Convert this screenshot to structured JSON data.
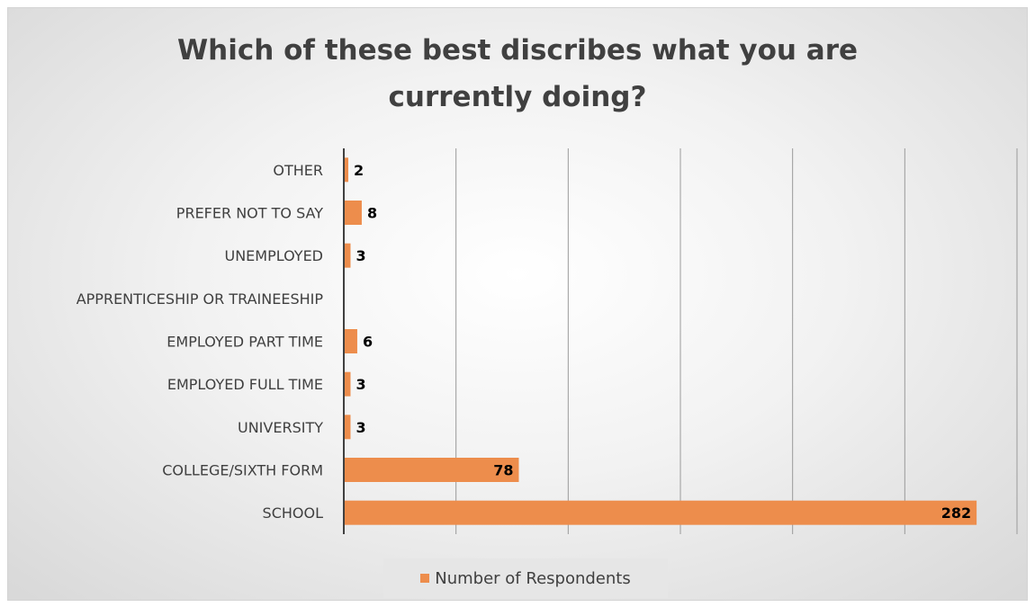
{
  "chart_data": {
    "type": "bar",
    "orientation": "horizontal",
    "title_lines": [
      "Which of these best discribes what you are",
      "currently doing?"
    ],
    "categories": [
      "OTHER",
      "PREFER NOT TO SAY",
      "UNEMPLOYED",
      "APPRENTICESHIP OR TRAINEESHIP",
      "EMPLOYED PART TIME",
      "EMPLOYED FULL TIME",
      "UNIVERSITY",
      "COLLEGE/SIXTH FORM",
      "SCHOOL"
    ],
    "series": [
      {
        "name": "Number of Respondents",
        "values": [
          2,
          8,
          3,
          0,
          6,
          3,
          3,
          78,
          282
        ],
        "data_labels": [
          "2",
          "8",
          "3",
          "",
          "6",
          "3",
          "3",
          "78",
          "282"
        ],
        "color": "#ED8D4C"
      }
    ],
    "xlim": [
      0,
      300
    ],
    "x_gridlines": [
      50,
      100,
      150,
      200,
      250,
      300
    ],
    "x_tick_labels_shown": false,
    "grid": true,
    "legend_position": "bottom"
  }
}
